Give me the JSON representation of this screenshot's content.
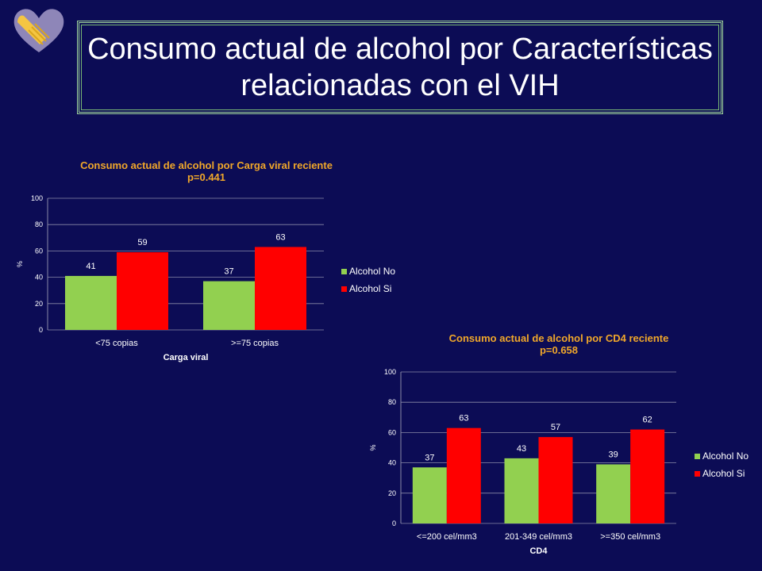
{
  "slide": {
    "title": "Consumo actual de alcohol por Características relacionadas con el VIH",
    "logo_icon": "handshake-heart-icon"
  },
  "colors": {
    "background": "#0c0c55",
    "series_no": "#92d050",
    "series_si": "#ff0000",
    "chart_title": "#f0a72a"
  },
  "chart_data": [
    {
      "type": "bar",
      "title": "Consumo actual  de alcohol por  Carga viral reciente",
      "subtitle": "p=0.441",
      "categories": [
        "<75 copias",
        ">=75 copias"
      ],
      "series": [
        {
          "name": "Alcohol No",
          "values": [
            41,
            37
          ]
        },
        {
          "name": "Alcohol Si",
          "values": [
            59,
            63
          ]
        }
      ],
      "xlabel": "Carga viral",
      "ylabel": "%",
      "ylim": [
        0,
        100
      ],
      "yticks": [
        0,
        20,
        40,
        60,
        80,
        100
      ],
      "grid": true,
      "legend": "right"
    },
    {
      "type": "bar",
      "title": "Consumo actual  de alcohol por  CD4 reciente",
      "subtitle": "p=0.658",
      "categories": [
        "<=200 cel/mm3",
        "201-349 cel/mm3",
        ">=350 cel/mm3"
      ],
      "series": [
        {
          "name": "Alcohol No",
          "values": [
            37,
            43,
            39
          ]
        },
        {
          "name": "Alcohol Si",
          "values": [
            63,
            57,
            62
          ]
        }
      ],
      "xlabel": "CD4",
      "ylabel": "%",
      "ylim": [
        0,
        100
      ],
      "yticks": [
        0,
        20,
        40,
        60,
        80,
        100
      ],
      "grid": true,
      "legend": "right"
    }
  ]
}
